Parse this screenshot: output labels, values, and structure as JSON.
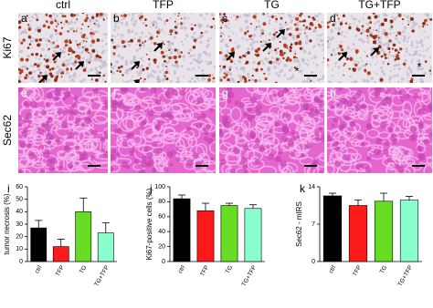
{
  "figure": {
    "columns": [
      "ctrl",
      "TFP",
      "TG",
      "TG+TFP"
    ],
    "rows": [
      "Ki67",
      "Sec62"
    ],
    "panels": [
      {
        "letter": "a"
      },
      {
        "letter": "b"
      },
      {
        "letter": "c",
        "annotation": "*"
      },
      {
        "letter": "d",
        "annotation": "*"
      },
      {
        "letter": "e"
      },
      {
        "letter": "f"
      },
      {
        "letter": "g"
      },
      {
        "letter": "h"
      }
    ]
  },
  "chart_data": [
    {
      "type": "bar",
      "panel_label": "i",
      "ylabel": "tumor necrosis (%)",
      "categories": [
        "ctrl",
        "TFP",
        "TG",
        "TG+TFP"
      ],
      "values": [
        27,
        12,
        40,
        23
      ],
      "errors": [
        6,
        6,
        11,
        8
      ],
      "colors": [
        "#000000",
        "#ff1a1a",
        "#66dd22",
        "#88ffcc"
      ],
      "ylim": [
        0,
        60
      ],
      "yticks": [
        0,
        10,
        20,
        30,
        40,
        50,
        60
      ]
    },
    {
      "type": "bar",
      "panel_label": "j",
      "ylabel": "Ki67-positive cells (%)",
      "categories": [
        "ctrl",
        "TFP",
        "TG",
        "TG+TFP"
      ],
      "values": [
        84,
        68,
        75,
        71
      ],
      "errors": [
        5,
        10,
        3,
        5
      ],
      "colors": [
        "#000000",
        "#ff1a1a",
        "#66dd22",
        "#88ffcc"
      ],
      "ylim": [
        0,
        100
      ],
      "yticks": [
        0,
        20,
        40,
        60,
        80,
        100
      ]
    },
    {
      "type": "bar",
      "panel_label": "k",
      "ylabel": "Sec62 - mIRS",
      "categories": [
        "ctrl",
        "TFP",
        "TG",
        "TG+TFP"
      ],
      "values": [
        12.3,
        10.5,
        11.3,
        11.5
      ],
      "errors": [
        0.5,
        1.0,
        1.5,
        0.7
      ],
      "colors": [
        "#000000",
        "#ff1a1a",
        "#66dd22",
        "#88ffcc"
      ],
      "ylim": [
        0,
        14
      ],
      "yticks": [
        0,
        7,
        14
      ]
    }
  ]
}
